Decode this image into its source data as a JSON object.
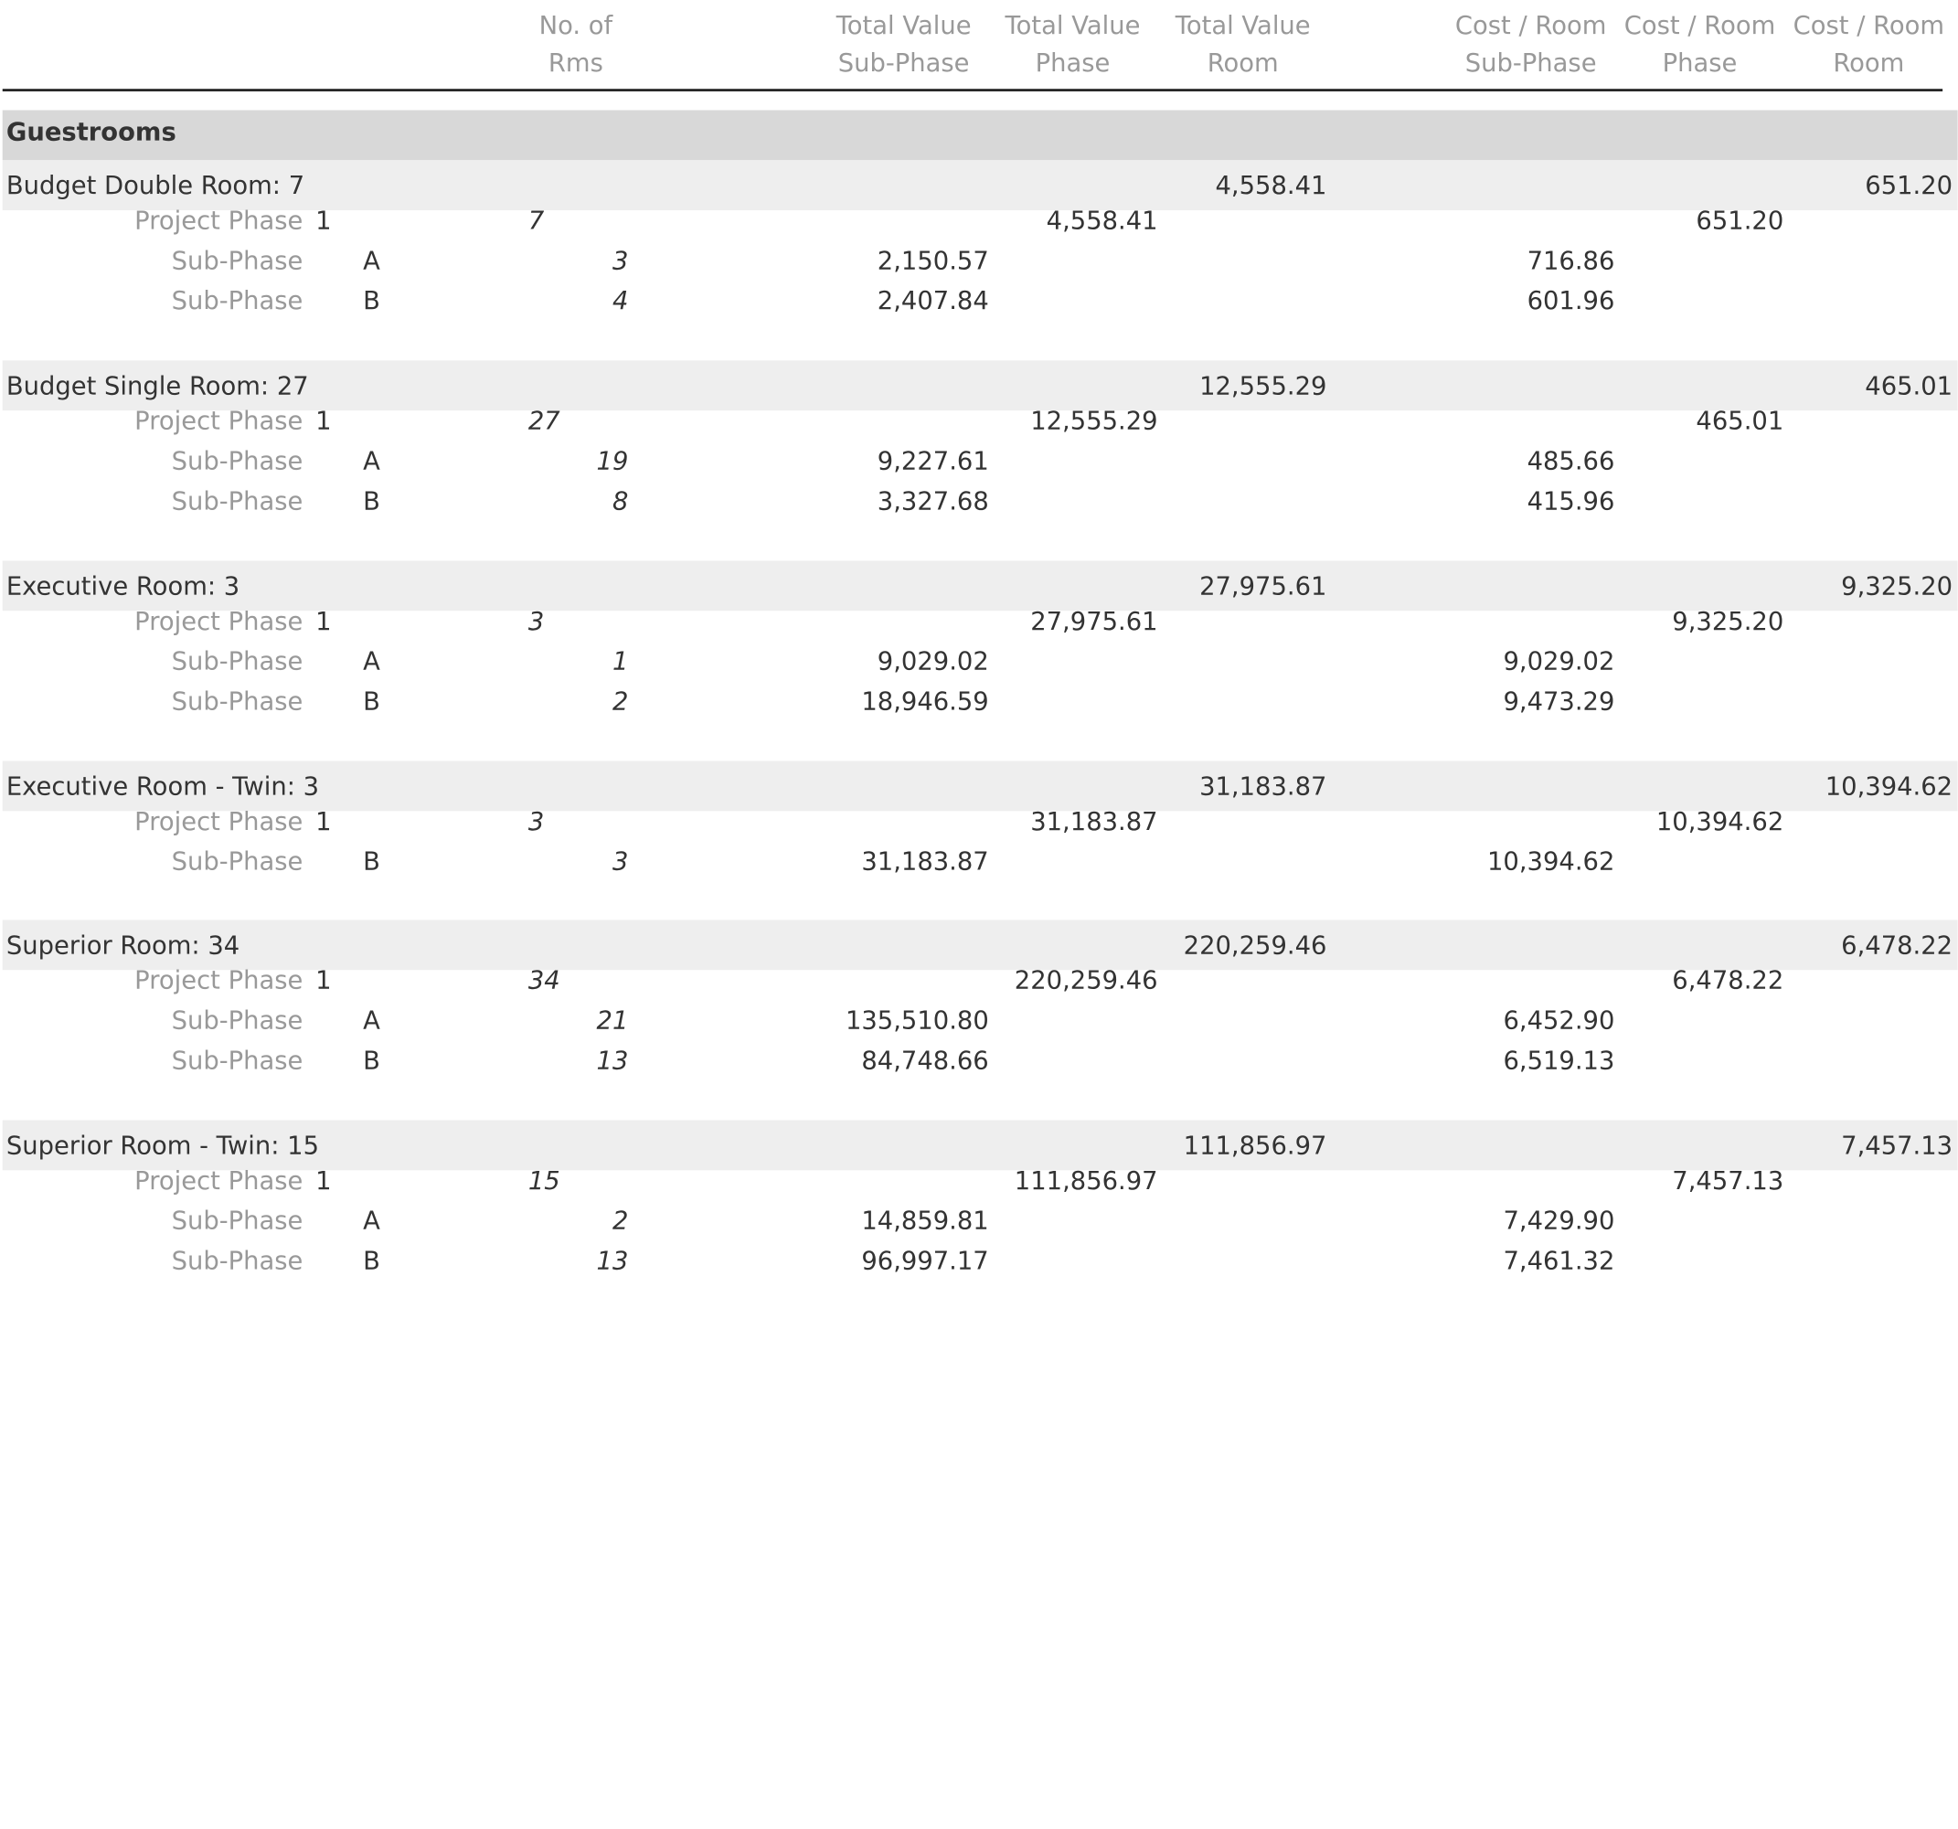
{
  "headers": {
    "rooms": [
      "No. of",
      "Rms"
    ],
    "tv_sub_phase": [
      "Total Value",
      "Sub-Phase"
    ],
    "tv_phase": [
      "Total Value",
      "Phase"
    ],
    "tv_room": [
      "Total Value",
      "Room"
    ],
    "cpr_sub_phase": [
      "Cost / Room",
      "Sub-Phase"
    ],
    "cpr_phase": [
      "Cost / Room",
      "Phase"
    ],
    "cpr_room": [
      "Cost / Room",
      "Room"
    ]
  },
  "section_title": "Guestrooms",
  "labels": {
    "project_phase": "Project Phase",
    "sub_phase": "Sub-Phase"
  },
  "groups": [
    {
      "name": "Budget Double Room: 7",
      "total_value": "4,558.41",
      "cost_per_room": "651.20",
      "phase": {
        "code": "1",
        "rooms": "7",
        "total_value": "4,558.41",
        "cost_per_room": "651.20"
      },
      "sub_phases": [
        {
          "code": "A",
          "rooms": "3",
          "total_value": "2,150.57",
          "cost_per_room": "716.86"
        },
        {
          "code": "B",
          "rooms": "4",
          "total_value": "2,407.84",
          "cost_per_room": "601.96"
        }
      ]
    },
    {
      "name": "Budget Single Room: 27",
      "total_value": "12,555.29",
      "cost_per_room": "465.01",
      "phase": {
        "code": "1",
        "rooms": "27",
        "total_value": "12,555.29",
        "cost_per_room": "465.01"
      },
      "sub_phases": [
        {
          "code": "A",
          "rooms": "19",
          "total_value": "9,227.61",
          "cost_per_room": "485.66"
        },
        {
          "code": "B",
          "rooms": "8",
          "total_value": "3,327.68",
          "cost_per_room": "415.96"
        }
      ]
    },
    {
      "name": "Executive Room: 3",
      "total_value": "27,975.61",
      "cost_per_room": "9,325.20",
      "phase": {
        "code": "1",
        "rooms": "3",
        "total_value": "27,975.61",
        "cost_per_room": "9,325.20"
      },
      "sub_phases": [
        {
          "code": "A",
          "rooms": "1",
          "total_value": "9,029.02",
          "cost_per_room": "9,029.02"
        },
        {
          "code": "B",
          "rooms": "2",
          "total_value": "18,946.59",
          "cost_per_room": "9,473.29"
        }
      ]
    },
    {
      "name": "Executive Room - Twin: 3",
      "total_value": "31,183.87",
      "cost_per_room": "10,394.62",
      "phase": {
        "code": "1",
        "rooms": "3",
        "total_value": "31,183.87",
        "cost_per_room": "10,394.62"
      },
      "sub_phases": [
        {
          "code": "B",
          "rooms": "3",
          "total_value": "31,183.87",
          "cost_per_room": "10,394.62"
        }
      ]
    },
    {
      "name": "Superior Room: 34",
      "total_value": "220,259.46",
      "cost_per_room": "6,478.22",
      "phase": {
        "code": "1",
        "rooms": "34",
        "total_value": "220,259.46",
        "cost_per_room": "6,478.22"
      },
      "sub_phases": [
        {
          "code": "A",
          "rooms": "21",
          "total_value": "135,510.80",
          "cost_per_room": "6,452.90"
        },
        {
          "code": "B",
          "rooms": "13",
          "total_value": "84,748.66",
          "cost_per_room": "6,519.13"
        }
      ]
    },
    {
      "name": "Superior Room - Twin: 15",
      "total_value": "111,856.97",
      "cost_per_room": "7,457.13",
      "phase": {
        "code": "1",
        "rooms": "15",
        "total_value": "111,856.97",
        "cost_per_room": "7,457.13"
      },
      "sub_phases": [
        {
          "code": "A",
          "rooms": "2",
          "total_value": "14,859.81",
          "cost_per_room": "7,429.90"
        },
        {
          "code": "B",
          "rooms": "13",
          "total_value": "96,997.17",
          "cost_per_room": "7,461.32"
        }
      ]
    }
  ]
}
